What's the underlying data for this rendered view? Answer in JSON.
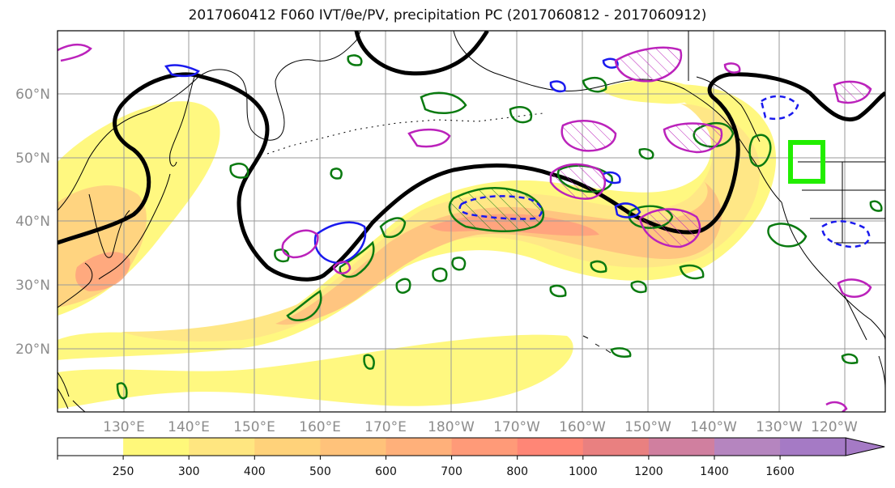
{
  "title": "2017060412 F060 IVT/θe/PV, precipitation PC (2017060812 - 2017060912)",
  "map": {
    "lat_labels": [
      "60°N",
      "50°N",
      "40°N",
      "30°N",
      "20°N"
    ],
    "lon_labels": [
      "130°E",
      "140°E",
      "150°E",
      "160°E",
      "170°E",
      "180°W",
      "170°W",
      "160°W",
      "150°W",
      "140°W",
      "130°W",
      "120°W"
    ],
    "label_color": "#8c8c8c",
    "target_box_color": "#22ee00",
    "colors": {
      "theta_e_contour": "#000000",
      "pv_contour_green": "#0a7a10",
      "pv_contour_blue": "#1a1aee",
      "pv_contour_magenta": "#bb22bb",
      "coastline": "#000000"
    }
  },
  "colorbar": {
    "ticks": [
      "250",
      "300",
      "400",
      "500",
      "600",
      "700",
      "800",
      "1000",
      "1200",
      "1400",
      "1600"
    ],
    "colors": [
      "#ffffff",
      "#fff87a",
      "#ffe680",
      "#ffd27a",
      "#ffc27a",
      "#ffb07a",
      "#ff9a78",
      "#ff8676",
      "#e98080",
      "#d07f9f",
      "#b585bf",
      "#a57ac5"
    ]
  }
}
